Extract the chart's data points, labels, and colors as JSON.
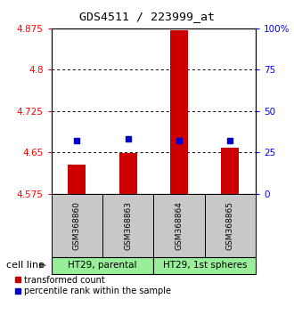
{
  "title": "GDS4511 / 223999_at",
  "samples": [
    "GSM368860",
    "GSM368863",
    "GSM368864",
    "GSM368865"
  ],
  "bar_bottom": 4.575,
  "bar_tops": [
    4.627,
    4.648,
    4.872,
    4.658
  ],
  "percentile_values": [
    4.672,
    4.674,
    4.672,
    4.671
  ],
  "y_left_ticks": [
    4.575,
    4.65,
    4.725,
    4.8,
    4.875
  ],
  "y_right_ticks": [
    0,
    25,
    50,
    75,
    100
  ],
  "ylim_left": [
    4.575,
    4.875
  ],
  "ylim_right": [
    0,
    100
  ],
  "bar_color": "#cc0000",
  "dot_color": "#0000cc",
  "cell_lines": [
    "HT29, parental",
    "HT29, 1st spheres"
  ],
  "cell_line_groups": [
    [
      0,
      1
    ],
    [
      2,
      3
    ]
  ],
  "cell_line_color": "#99ee99",
  "sample_label_bg": "#c8c8c8",
  "legend_bar_label": "transformed count",
  "legend_dot_label": "percentile rank within the sample",
  "cell_line_label": "cell line",
  "bar_width": 0.35
}
